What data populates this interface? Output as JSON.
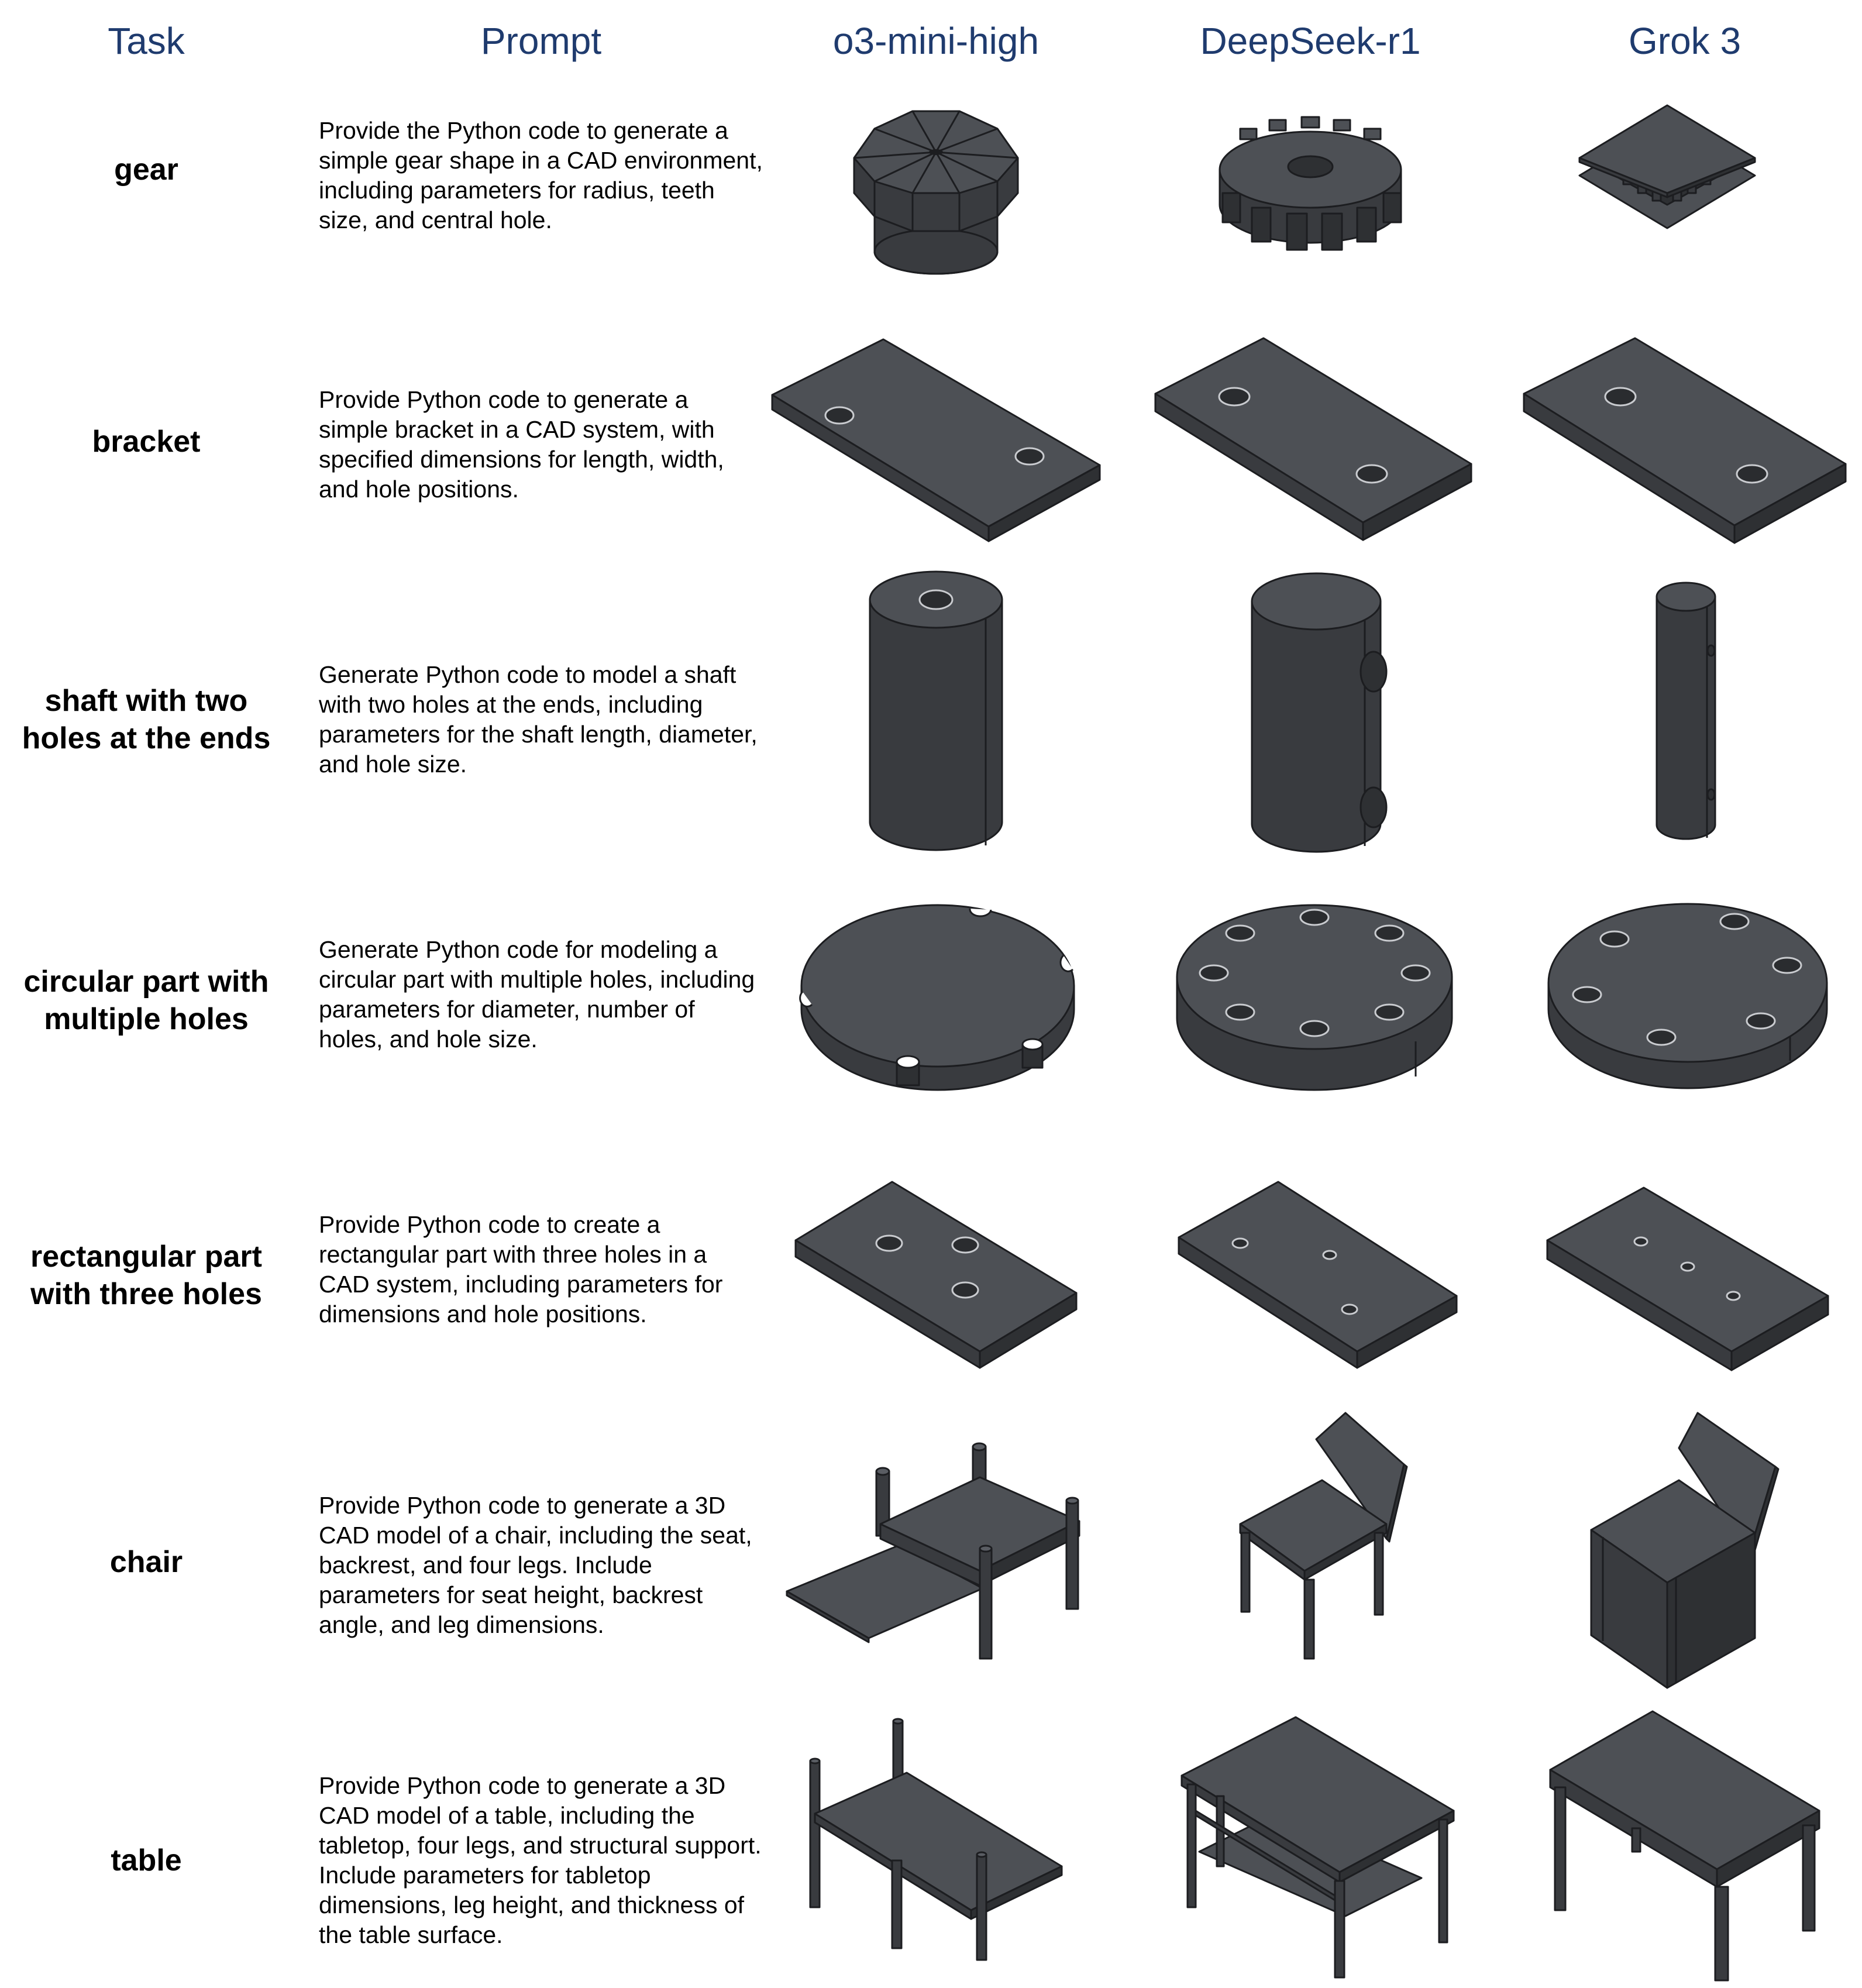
{
  "headers": [
    "Task",
    "Prompt",
    "o3-mini-high",
    "DeepSeek-r1",
    "Grok 3"
  ],
  "rows": [
    {
      "task": "gear",
      "prompt": "Provide the Python code to generate a simple gear shape in a CAD environment, including parameters for radius, teeth size, and central hole."
    },
    {
      "task": "bracket",
      "prompt": "Provide Python code to generate a simple bracket in a CAD system, with specified dimensions for length, width, and hole positions."
    },
    {
      "task": "shaft with two\nholes at the ends",
      "prompt": "Generate Python code to model a shaft with two holes at the ends, including parameters for the shaft length, diameter, and hole size."
    },
    {
      "task": "circular part with\nmultiple holes",
      "prompt": "Generate Python code for modeling a circular part with multiple holes, including parameters for diameter, number of holes, and hole size."
    },
    {
      "task": "rectangular part\nwith three holes",
      "prompt": "Provide Python code to create a rectangular part with three holes in a CAD system, including parameters for dimensions and hole positions."
    },
    {
      "task": "chair",
      "prompt": "Provide Python code to generate a 3D CAD model of a chair, including the seat, backrest, and four legs. Include parameters for seat height, backrest angle, and leg dimensions."
    },
    {
      "task": "table",
      "prompt": "Provide Python code to generate a 3D CAD model of a table, including the tabletop, four legs, and structural support. Include parameters for tabletop dimensions, leg height, and thickness of the table surface."
    }
  ]
}
